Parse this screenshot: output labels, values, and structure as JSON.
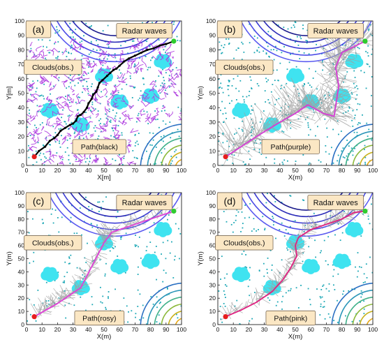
{
  "colors": {
    "cloud": "#3fe3f0",
    "obstacle_dot": "#1aa7b5",
    "start": "#e61e1e",
    "goal": "#2ecc2e",
    "label_fill": "#fbe7c4",
    "label_stroke": "#7a6a55",
    "radar_top": [
      "#1a1a8c",
      "#2b2bb8",
      "#3a3ad4",
      "#4b4be6",
      "#5a5af0"
    ],
    "radar_corner": [
      "#e6a817",
      "#c9b21c",
      "#8cb93a",
      "#3fb089",
      "#2a95b8",
      "#2a6fc2"
    ],
    "tree": "#a0a0a0",
    "rrt_lattice": "#b040e0",
    "path_a": "#000000",
    "path_b": "#d63bd6",
    "path_c": "#e040d8",
    "path_d": "#e02080"
  },
  "panels": [
    {
      "id": "a",
      "panel_label": "(a)",
      "radar_label": "Radar waves",
      "clouds_label": "Clouds(obs.)",
      "path_label": "Path(black)",
      "xlabel": "X[m]",
      "ylabel": "Y[m]",
      "xticks": [
        "0",
        "10",
        "20",
        "30",
        "40",
        "50",
        "60",
        "70",
        "80",
        "90",
        "100"
      ],
      "yticks": [
        "0",
        "10",
        "20",
        "30",
        "40",
        "50",
        "60",
        "70",
        "80",
        "90",
        "100"
      ],
      "start": [
        5,
        6
      ],
      "goal": [
        95,
        86
      ],
      "path_color_key": "path_a",
      "path": [
        [
          5,
          6
        ],
        [
          8,
          10
        ],
        [
          12,
          13
        ],
        [
          15,
          17
        ],
        [
          18,
          19
        ],
        [
          20,
          21
        ],
        [
          22,
          24
        ],
        [
          25,
          26
        ],
        [
          28,
          28
        ],
        [
          30,
          29
        ],
        [
          32,
          31
        ],
        [
          33,
          34
        ],
        [
          35,
          35
        ],
        [
          37,
          37
        ],
        [
          39,
          40
        ],
        [
          40,
          43
        ],
        [
          42,
          46
        ],
        [
          43,
          49
        ],
        [
          45,
          51
        ],
        [
          46,
          54
        ],
        [
          47,
          57
        ],
        [
          49,
          59
        ],
        [
          52,
          62
        ],
        [
          54,
          64
        ],
        [
          56,
          66
        ],
        [
          58,
          67
        ],
        [
          60,
          69
        ],
        [
          63,
          72
        ],
        [
          66,
          74
        ],
        [
          70,
          76
        ],
        [
          74,
          78
        ],
        [
          78,
          80
        ],
        [
          82,
          81
        ],
        [
          86,
          83
        ],
        [
          90,
          84
        ],
        [
          95,
          86
        ]
      ]
    },
    {
      "id": "b",
      "panel_label": "(b)",
      "radar_label": "Radar waves",
      "clouds_label": "Clouds(obs.)",
      "path_label": "Path(purple)",
      "xlabel": "X(m)",
      "ylabel": "Y(m)",
      "xticks": [
        "0",
        "10",
        "20",
        "30",
        "40",
        "50",
        "60",
        "70",
        "80",
        "90",
        "100"
      ],
      "yticks": [
        "0",
        "10",
        "20",
        "30",
        "40",
        "50",
        "60",
        "70",
        "80",
        "90",
        "100"
      ],
      "start": [
        5,
        6
      ],
      "goal": [
        95,
        86
      ],
      "path_color_key": "path_b",
      "path": [
        [
          5,
          6
        ],
        [
          15,
          13
        ],
        [
          25,
          20
        ],
        [
          37,
          28
        ],
        [
          50,
          36
        ],
        [
          58,
          42
        ],
        [
          68,
          36
        ],
        [
          75,
          34
        ],
        [
          78,
          55
        ],
        [
          76,
          68
        ],
        [
          80,
          78
        ],
        [
          95,
          86
        ]
      ]
    },
    {
      "id": "c",
      "panel_label": "(c)",
      "radar_label": "Radar waves",
      "clouds_label": "Clouds(obs.)",
      "path_label": "Path(rosy)",
      "xlabel": "X(m)",
      "ylabel": "Y(m)",
      "xticks": [
        "0",
        "10",
        "20",
        "30",
        "40",
        "50",
        "60",
        "70",
        "80",
        "90",
        "100"
      ],
      "yticks": [
        "0",
        "10",
        "20",
        "30",
        "40",
        "50",
        "60",
        "70",
        "80",
        "90",
        "100"
      ],
      "start": [
        5,
        6
      ],
      "goal": [
        95,
        86
      ],
      "path_color_key": "path_c",
      "path": [
        [
          5,
          6
        ],
        [
          20,
          16
        ],
        [
          35,
          28
        ],
        [
          50,
          62
        ],
        [
          55,
          70
        ],
        [
          95,
          86
        ]
      ]
    },
    {
      "id": "d",
      "panel_label": "(d)",
      "radar_label": "Radar waves",
      "clouds_label": "Clouds(obs.)",
      "path_label": "Path(pink)",
      "xlabel": "X(m)",
      "ylabel": "Y(m)",
      "xticks": [
        "0",
        "10",
        "20",
        "30",
        "40",
        "50",
        "60",
        "70",
        "80",
        "90",
        "100"
      ],
      "yticks": [
        "0",
        "10",
        "20",
        "30",
        "40",
        "50",
        "60",
        "70",
        "80",
        "90",
        "100"
      ],
      "start": [
        5,
        6
      ],
      "goal": [
        95,
        86
      ],
      "path_color_key": "path_d",
      "path": [
        [
          5,
          6
        ],
        [
          15,
          11
        ],
        [
          25,
          17
        ],
        [
          35,
          25
        ],
        [
          42,
          34
        ],
        [
          47,
          43
        ],
        [
          51,
          52
        ],
        [
          50,
          60
        ],
        [
          52,
          66
        ],
        [
          60,
          72
        ],
        [
          70,
          76
        ],
        [
          80,
          80
        ],
        [
          88,
          85
        ],
        [
          95,
          86
        ]
      ]
    }
  ]
}
